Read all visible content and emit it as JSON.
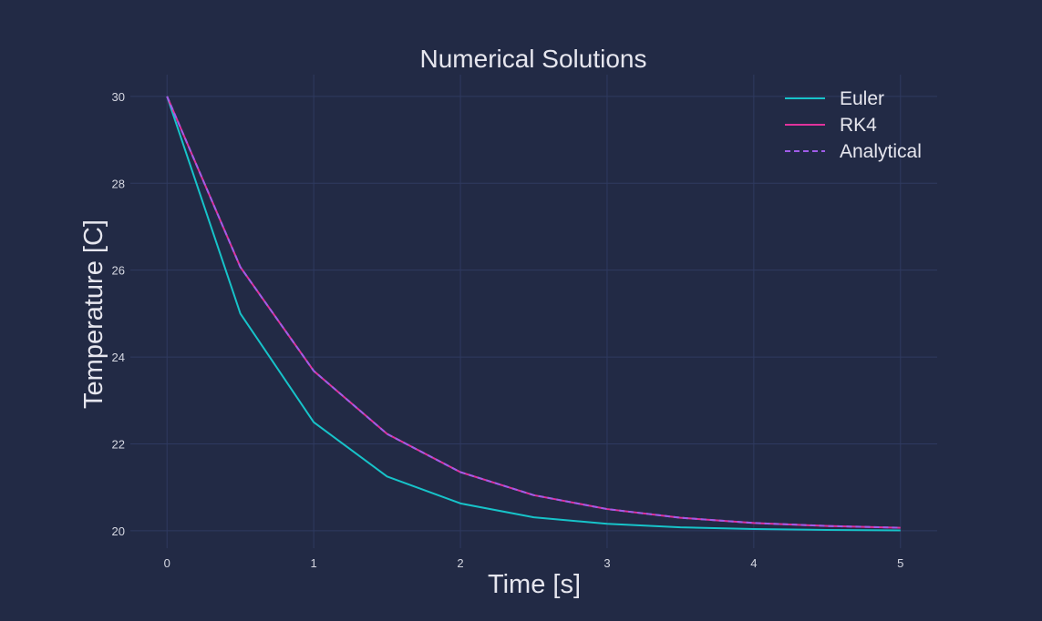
{
  "chart_data": {
    "type": "line",
    "title": "Numerical Solutions",
    "xlabel": "Time [s]",
    "ylabel": "Temperature [C]",
    "xlim": [
      -0.25,
      5.25
    ],
    "ylim": [
      19.6,
      30.5
    ],
    "xticks": [
      0,
      1,
      2,
      3,
      4,
      5
    ],
    "yticks": [
      20,
      22,
      24,
      26,
      28,
      30
    ],
    "grid": true,
    "legend_position": "top-right",
    "colors": {
      "background": "#222a45",
      "grid": "#2f3a60",
      "text": "#e6e6ee"
    },
    "x": [
      0,
      0.5,
      1,
      1.5,
      2,
      2.5,
      3,
      3.5,
      4,
      4.5,
      5
    ],
    "series": [
      {
        "name": "Euler",
        "color": "#17c3c9",
        "dash": "solid",
        "values": [
          30,
          25,
          22.5,
          21.25,
          20.63,
          20.31,
          20.16,
          20.08,
          20.04,
          20.02,
          20.01
        ]
      },
      {
        "name": "RK4",
        "color": "#e0339c",
        "dash": "solid",
        "values": [
          30,
          26.07,
          23.68,
          22.23,
          21.35,
          20.82,
          20.5,
          20.3,
          20.18,
          20.11,
          20.07
        ]
      },
      {
        "name": "Analytical",
        "color": "#a05ce8",
        "dash": "dashed",
        "values": [
          30,
          26.07,
          23.68,
          22.23,
          21.35,
          20.82,
          20.5,
          20.3,
          20.18,
          20.11,
          20.07
        ]
      }
    ]
  }
}
